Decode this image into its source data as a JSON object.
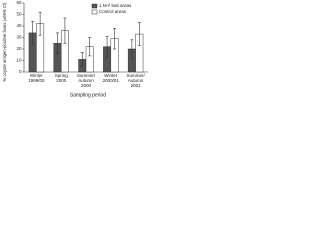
{
  "chart_data": {
    "type": "bar",
    "y_label": "% coyote antigen-positive foxes (±95% CI)",
    "x_label": "Sampling period",
    "categories": [
      [
        "Winter",
        "1999/00"
      ],
      [
        "Spring",
        "2000"
      ],
      [
        "Summer/",
        "Autumn",
        "2000"
      ],
      [
        "Winter",
        "2000/01"
      ],
      [
        "Summer/",
        "Autumn",
        "2001"
      ]
    ],
    "series": [
      {
        "name": "1 km² bait areas",
        "color": "#555555",
        "values": [
          34,
          25,
          11,
          22,
          20
        ],
        "errors": [
          10,
          9,
          6,
          9,
          8
        ]
      },
      {
        "name": "Control areas",
        "color": "#ffffff",
        "values": [
          42,
          36,
          22,
          29,
          33
        ],
        "errors": [
          10,
          11,
          8,
          9,
          10
        ]
      }
    ],
    "ylim": [
      0,
      60
    ],
    "yticks": [
      0,
      10,
      20,
      30,
      40,
      50,
      60
    ]
  }
}
